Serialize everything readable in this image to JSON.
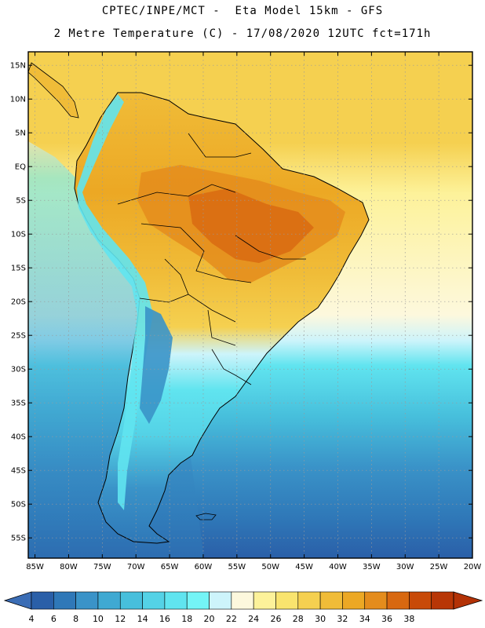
{
  "header": {
    "line1": "CPTEC/INPE/MCT -  Eta Model 15km - GFS",
    "line2": "2 Metre Temperature (C) - 17/08/2020 12UTC fct=171h"
  },
  "map": {
    "lon_range": [
      -86,
      -20
    ],
    "lat_range": [
      -58,
      17
    ],
    "lat_labels": [
      "15N",
      "10N",
      "5N",
      "EQ",
      "5S",
      "10S",
      "15S",
      "20S",
      "25S",
      "30S",
      "35S",
      "40S",
      "45S",
      "50S",
      "55S"
    ],
    "lat_values": [
      15,
      10,
      5,
      0,
      -5,
      -10,
      -15,
      -20,
      -25,
      -30,
      -35,
      -40,
      -45,
      -50,
      -55
    ],
    "lon_labels": [
      "85W",
      "80W",
      "75W",
      "70W",
      "65W",
      "60W",
      "55W",
      "50W",
      "45W",
      "40W",
      "35W",
      "30W",
      "25W",
      "20W"
    ],
    "lon_values": [
      -85,
      -80,
      -75,
      -70,
      -65,
      -60,
      -55,
      -50,
      -45,
      -40,
      -35,
      -30,
      -25,
      -20
    ]
  },
  "colorbar": {
    "values": [
      "4",
      "6",
      "8",
      "10",
      "12",
      "14",
      "16",
      "18",
      "20",
      "22",
      "24",
      "26",
      "28",
      "30",
      "32",
      "34",
      "36",
      "38"
    ],
    "colors": [
      "#2a5fa8",
      "#2f78b8",
      "#3a93c8",
      "#3fa9d2",
      "#47bfdc",
      "#54d2e6",
      "#60e4ef",
      "#74f4f6",
      "#cdf4fb",
      "#fdf8dd",
      "#fdf29a",
      "#f9e46e",
      "#f5d050",
      "#f0bc38",
      "#eca824",
      "#e48c1c",
      "#d86810",
      "#c84a08",
      "#b83606"
    ],
    "low_color": "#3b6db5",
    "high_color": "#b33206"
  }
}
